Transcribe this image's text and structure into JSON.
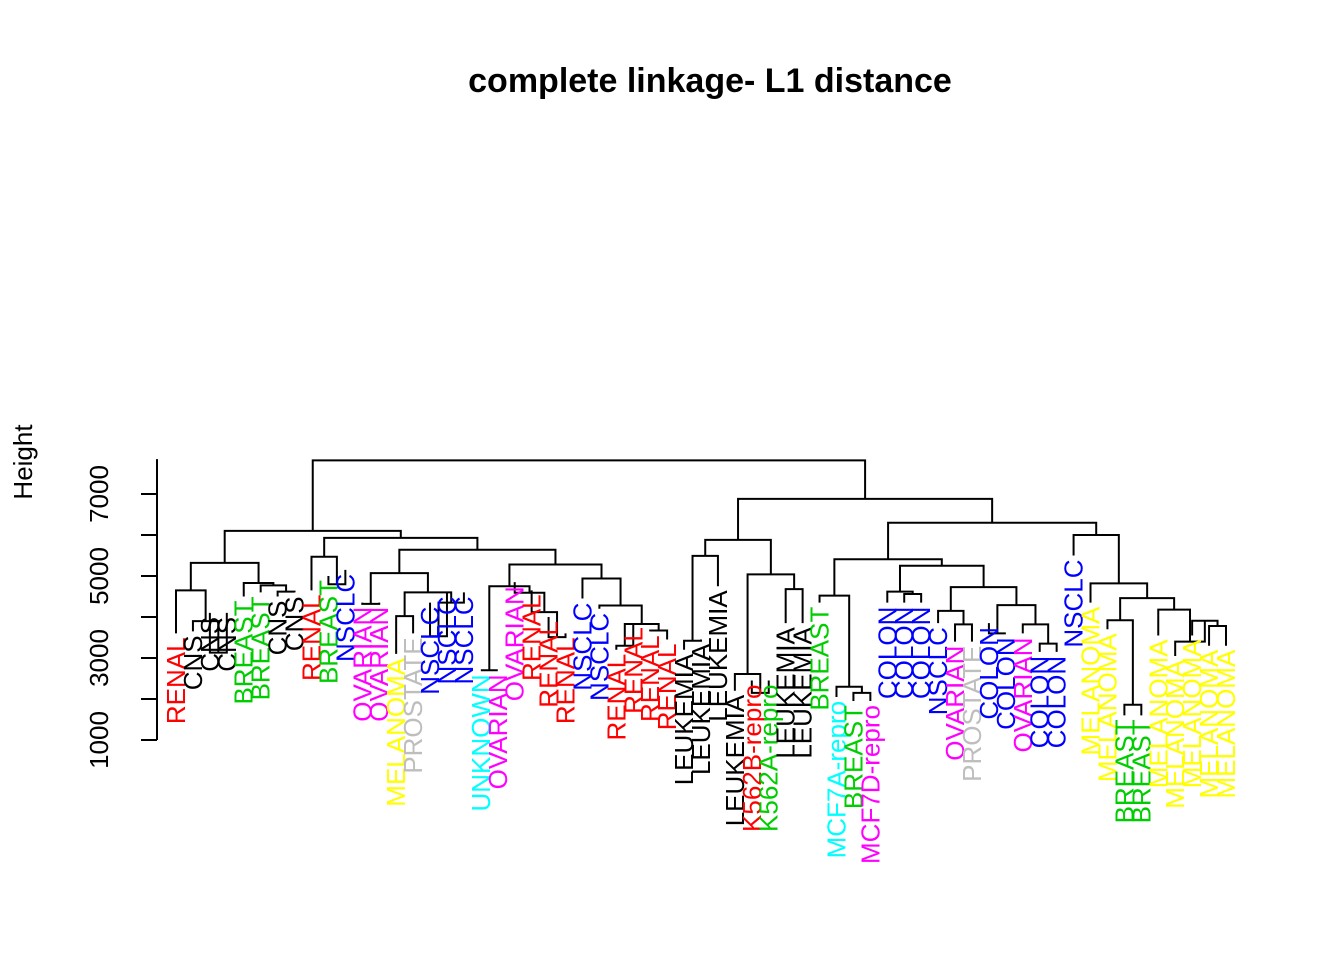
{
  "chart_data": {
    "type": "dendrogram",
    "title": "complete linkage- L1 distance",
    "ylabel": "Height",
    "xlabel": "",
    "ylim": [
      1000,
      7850
    ],
    "yticks": [
      1000,
      3000,
      5000,
      7000
    ],
    "leaves": [
      {
        "label": "RENAL",
        "color": "#ff0000",
        "h": 3600
      },
      {
        "label": "CNS",
        "color": "#000000",
        "h": 3650
      },
      {
        "label": "CNS",
        "color": "#000000",
        "h": 4100
      },
      {
        "label": "CNS",
        "color": "#000000",
        "h": 4100
      },
      {
        "label": "BREAST",
        "color": "#00cd00",
        "h": 4500
      },
      {
        "label": "BREAST",
        "color": "#00cd00",
        "h": 4600
      },
      {
        "label": "CNS",
        "color": "#000000",
        "h": 4500
      },
      {
        "label": "CNS",
        "color": "#000000",
        "h": 4600
      },
      {
        "label": "RENAL",
        "color": "#ff0000",
        "h": 4650
      },
      {
        "label": "BREAST",
        "color": "#00cd00",
        "h": 5000
      },
      {
        "label": "NSCLC",
        "color": "#0000ff",
        "h": 5150
      },
      {
        "label": "OVARIAN",
        "color": "#ff00ff",
        "h": 4350
      },
      {
        "label": "OVARIAN",
        "color": "#ff00ff",
        "h": 4350
      },
      {
        "label": "MELANOMA",
        "color": "#ffff00",
        "h": 3100
      },
      {
        "label": "PROSTATE",
        "color": "#bebebe",
        "h": 3600
      },
      {
        "label": "NSCLC",
        "color": "#0000ff",
        "h": 4350
      },
      {
        "label": "NSCLC",
        "color": "#0000ff",
        "h": 4600
      },
      {
        "label": "NSCLC",
        "color": "#0000ff",
        "h": 4600
      },
      {
        "label": "UNKNOWN",
        "color": "#00ffff",
        "h": 2700
      },
      {
        "label": "OVARIAN",
        "color": "#ff00ff",
        "h": 2700
      },
      {
        "label": "OVARIAN",
        "color": "#ff00ff",
        "h": 4850
      },
      {
        "label": "RENAL",
        "color": "#ff0000",
        "h": 4650
      },
      {
        "label": "RENAL",
        "color": "#ff0000",
        "h": 4000
      },
      {
        "label": "RENAL",
        "color": "#ff0000",
        "h": 3600
      },
      {
        "label": "NSCLC",
        "color": "#0000ff",
        "h": 4450
      },
      {
        "label": "NSCLC",
        "color": "#0000ff",
        "h": 4200
      },
      {
        "label": "RENAL",
        "color": "#ff0000",
        "h": 3200
      },
      {
        "label": "RENAL",
        "color": "#ff0000",
        "h": 3850
      },
      {
        "label": "RENAL",
        "color": "#ff0000",
        "h": 3650
      },
      {
        "label": "RENAL",
        "color": "#ff0000",
        "h": 3450
      },
      {
        "label": "LEUKEMIA",
        "color": "#000000",
        "h": 3200
      },
      {
        "label": "LEUKEMIA",
        "color": "#000000",
        "h": 3450
      },
      {
        "label": "LEUKEMIA",
        "color": "#000000",
        "h": 4750
      },
      {
        "label": "LEUKEMIA",
        "color": "#000000",
        "h": 2200
      },
      {
        "label": "K562B-repro",
        "color": "#ff0000",
        "h": 2450
      },
      {
        "label": "K562A-repro",
        "color": "#00cd00",
        "h": 2450
      },
      {
        "label": "LEUKEMIA",
        "color": "#000000",
        "h": 3850
      },
      {
        "label": "LEUKEMIA",
        "color": "#000000",
        "h": 3850
      },
      {
        "label": "BREAST",
        "color": "#00cd00",
        "h": 4350
      },
      {
        "label": "MCF7A-repro",
        "color": "#00ffff",
        "h": 2050
      },
      {
        "label": "BREAST",
        "color": "#00cd00",
        "h": 1950
      },
      {
        "label": "MCF7D-repro",
        "color": "#ff00ff",
        "h": 1950
      },
      {
        "label": "COLON",
        "color": "#0000ff",
        "h": 4350
      },
      {
        "label": "COLON",
        "color": "#0000ff",
        "h": 4350
      },
      {
        "label": "COLON",
        "color": "#0000ff",
        "h": 4350
      },
      {
        "label": "NSCLC",
        "color": "#0000ff",
        "h": 3850
      },
      {
        "label": "OVARIAN",
        "color": "#ff00ff",
        "h": 3400
      },
      {
        "label": "PROSTATE",
        "color": "#bebebe",
        "h": 3400
      },
      {
        "label": "COLON",
        "color": "#0000ff",
        "h": 3850
      },
      {
        "label": "COLON",
        "color": "#0000ff",
        "h": 3600
      },
      {
        "label": "OVARIAN",
        "color": "#ff00ff",
        "h": 3600
      },
      {
        "label": "COLON",
        "color": "#0000ff",
        "h": 3150
      },
      {
        "label": "COLON",
        "color": "#0000ff",
        "h": 3150
      },
      {
        "label": "NSCLC",
        "color": "#0000ff",
        "h": 5500
      },
      {
        "label": "MELANOMA",
        "color": "#ffff00",
        "h": 4350
      },
      {
        "label": "MELANOMA",
        "color": "#ffff00",
        "h": 3700
      },
      {
        "label": "BREAST",
        "color": "#00cd00",
        "h": 1600
      },
      {
        "label": "BREAST",
        "color": "#00cd00",
        "h": 1600
      },
      {
        "label": "MELANOMA",
        "color": "#ffff00",
        "h": 3550
      },
      {
        "label": "MELANOMA",
        "color": "#ffff00",
        "h": 3050
      },
      {
        "label": "MELANOMA",
        "color": "#ffff00",
        "h": 3550
      },
      {
        "label": "MELANOMA",
        "color": "#ffff00",
        "h": 3300
      },
      {
        "label": "MELANOMA",
        "color": "#ffff00",
        "h": 3300
      }
    ],
    "merges": [
      {
        "pair": [
          "L2",
          "L3"
        ],
        "h": 3130
      },
      {
        "pair": [
          "L1",
          "M0"
        ],
        "h": 3900
      },
      {
        "pair": [
          "L0",
          "M1"
        ],
        "h": 4650
      },
      {
        "pair": [
          "L6",
          "L7"
        ],
        "h": 4620
      },
      {
        "pair": [
          "L5",
          "M3"
        ],
        "h": 4770
      },
      {
        "pair": [
          "L4",
          "M4"
        ],
        "h": 4830
      },
      {
        "pair": [
          "M2",
          "M5"
        ],
        "h": 5320
      },
      {
        "pair": [
          "L9",
          "L10"
        ],
        "h": 4800
      },
      {
        "pair": [
          "L8",
          "M7"
        ],
        "h": 5470
      },
      {
        "pair": [
          "L11",
          "L12"
        ],
        "h": 4320
      },
      {
        "pair": [
          "L13",
          "L14"
        ],
        "h": 4020
      },
      {
        "pair": [
          "L15",
          "L16"
        ],
        "h": 3530
      },
      {
        "pair": [
          "M11",
          "L17"
        ],
        "h": 4350
      },
      {
        "pair": [
          "M10",
          "M12"
        ],
        "h": 4600
      },
      {
        "pair": [
          "M9",
          "M13"
        ],
        "h": 5070
      },
      {
        "pair": [
          "L18",
          "L19"
        ],
        "h": 2700
      },
      {
        "pair": [
          "L22",
          "L23"
        ],
        "h": 3510
      },
      {
        "pair": [
          "L21",
          "M16"
        ],
        "h": 4120
      },
      {
        "pair": [
          "L20",
          "M17"
        ],
        "h": 4590
      },
      {
        "pair": [
          "M15",
          "M18"
        ],
        "h": 4750
      },
      {
        "pair": [
          "L26",
          "L27"
        ],
        "h": 3300
      },
      {
        "pair": [
          "L28",
          "L29"
        ],
        "h": 3670
      },
      {
        "pair": [
          "M20",
          "M21"
        ],
        "h": 3830
      },
      {
        "pair": [
          "L25",
          "M22"
        ],
        "h": 4280
      },
      {
        "pair": [
          "L24",
          "M23"
        ],
        "h": 4940
      },
      {
        "pair": [
          "M19",
          "M24"
        ],
        "h": 5280
      },
      {
        "pair": [
          "M14",
          "M25"
        ],
        "h": 5640
      },
      {
        "pair": [
          "M8",
          "M26"
        ],
        "h": 5930
      },
      {
        "pair": [
          "M6",
          "M27"
        ],
        "h": 6100
      },
      {
        "pair": [
          "L30",
          "L31"
        ],
        "h": 3420
      },
      {
        "pair": [
          "M29",
          "L32"
        ],
        "h": 5490
      },
      {
        "pair": [
          "L34",
          "L35"
        ],
        "h": 2150
      },
      {
        "pair": [
          "L33",
          "M31"
        ],
        "h": 2610
      },
      {
        "pair": [
          "L36",
          "L37"
        ],
        "h": 4680
      },
      {
        "pair": [
          "M32",
          "M33"
        ],
        "h": 5040
      },
      {
        "pair": [
          "M30",
          "M34"
        ],
        "h": 5880
      },
      {
        "pair": [
          "L40",
          "L41"
        ],
        "h": 2150
      },
      {
        "pair": [
          "L39",
          "M36"
        ],
        "h": 2300
      },
      {
        "pair": [
          "L38",
          "M37"
        ],
        "h": 4520
      },
      {
        "pair": [
          "L43",
          "L44"
        ],
        "h": 4560
      },
      {
        "pair": [
          "L42",
          "M39"
        ],
        "h": 4620
      },
      {
        "pair": [
          "L46",
          "L47"
        ],
        "h": 3820
      },
      {
        "pair": [
          "L45",
          "M41"
        ],
        "h": 4150
      },
      {
        "pair": [
          "L48",
          "L49"
        ],
        "h": 3600
      },
      {
        "pair": [
          "L51",
          "L52"
        ],
        "h": 3350
      },
      {
        "pair": [
          "L50",
          "M44"
        ],
        "h": 3820
      },
      {
        "pair": [
          "M43",
          "M45"
        ],
        "h": 4290
      },
      {
        "pair": [
          "M42",
          "M46"
        ],
        "h": 4730
      },
      {
        "pair": [
          "M40",
          "M47"
        ],
        "h": 5250
      },
      {
        "pair": [
          "M38",
          "M48"
        ],
        "h": 5410
      },
      {
        "pair": [
          "L56",
          "L57"
        ],
        "h": 1860
      },
      {
        "pair": [
          "L55",
          "M50"
        ],
        "h": 3920
      },
      {
        "pair": [
          "L61",
          "L62"
        ],
        "h": 3780
      },
      {
        "pair": [
          "L60",
          "M52"
        ],
        "h": 3910
      },
      {
        "pair": [
          "L59",
          "M53"
        ],
        "h": 3400
      },
      {
        "pair": [
          "L58",
          "M54"
        ],
        "h": 4180
      },
      {
        "pair": [
          "M51",
          "M55"
        ],
        "h": 4460
      },
      {
        "pair": [
          "L54",
          "M56"
        ],
        "h": 4820
      },
      {
        "pair": [
          "L53",
          "M57"
        ],
        "h": 6000
      },
      {
        "pair": [
          "M49",
          "M58"
        ],
        "h": 6300
      },
      {
        "pair": [
          "M35",
          "M59"
        ],
        "h": 6880
      },
      {
        "pair": [
          "M28",
          "M60"
        ],
        "h": 7820
      }
    ]
  }
}
